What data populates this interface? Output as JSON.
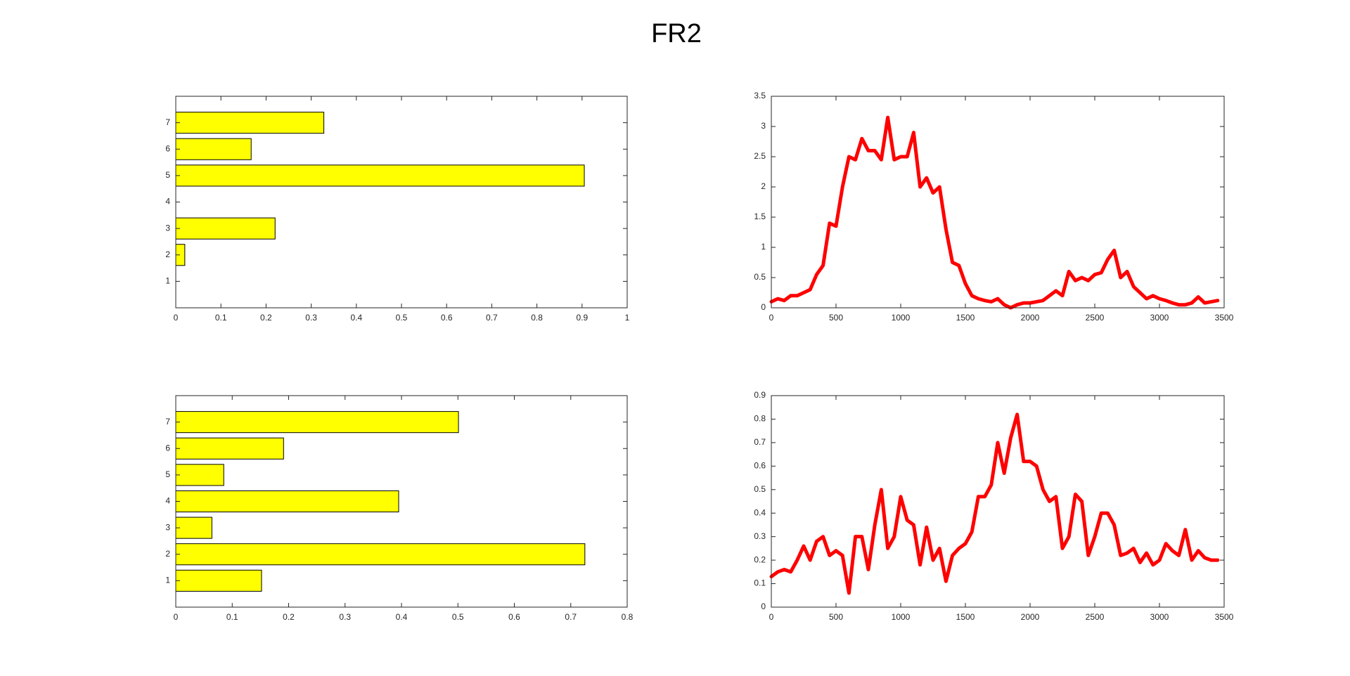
{
  "title": "FR2",
  "chart_data": [
    {
      "type": "barh",
      "y": [
        1,
        2,
        3,
        4,
        5,
        6,
        7
      ],
      "values": [
        0,
        0.02,
        0.22,
        0,
        0.905,
        0.167,
        0.328
      ],
      "color": "#ffff00",
      "edgecolor": "#000000",
      "xlim": [
        0,
        1
      ],
      "xticks": [
        0,
        0.1,
        0.2,
        0.3,
        0.4,
        0.5,
        0.6,
        0.7,
        0.8,
        0.9,
        1
      ],
      "ylim": [
        0,
        8
      ],
      "yticks": [
        1,
        2,
        3,
        4,
        5,
        6,
        7
      ]
    },
    {
      "type": "line",
      "color": "#ff0000",
      "x": [
        0,
        50,
        100,
        150,
        200,
        250,
        300,
        350,
        400,
        450,
        500,
        550,
        600,
        650,
        700,
        750,
        800,
        850,
        900,
        950,
        1000,
        1050,
        1100,
        1150,
        1200,
        1250,
        1300,
        1350,
        1400,
        1450,
        1500,
        1550,
        1600,
        1650,
        1700,
        1750,
        1800,
        1850,
        1900,
        1950,
        2000,
        2050,
        2100,
        2150,
        2200,
        2250,
        2300,
        2350,
        2400,
        2450,
        2500,
        2550,
        2600,
        2650,
        2700,
        2750,
        2800,
        2850,
        2900,
        2950,
        3000,
        3050,
        3100,
        3150,
        3200,
        3250,
        3300,
        3350,
        3400,
        3450
      ],
      "values": [
        0.1,
        0.15,
        0.12,
        0.2,
        0.2,
        0.25,
        0.3,
        0.55,
        0.7,
        1.4,
        1.35,
        2.0,
        2.5,
        2.45,
        2.8,
        2.6,
        2.6,
        2.45,
        3.15,
        2.45,
        2.5,
        2.5,
        2.9,
        2.0,
        2.15,
        1.9,
        2.0,
        1.3,
        0.75,
        0.7,
        0.4,
        0.2,
        0.15,
        0.12,
        0.1,
        0.15,
        0.05,
        0.0,
        0.05,
        0.08,
        0.08,
        0.1,
        0.12,
        0.2,
        0.28,
        0.2,
        0.6,
        0.45,
        0.5,
        0.45,
        0.55,
        0.58,
        0.8,
        0.95,
        0.5,
        0.6,
        0.35,
        0.25,
        0.15,
        0.2,
        0.15,
        0.12,
        0.08,
        0.05,
        0.05,
        0.08,
        0.18,
        0.08,
        0.1,
        0.12
      ],
      "xlim": [
        0,
        3500
      ],
      "xticks": [
        0,
        500,
        1000,
        1500,
        2000,
        2500,
        3000,
        3500
      ],
      "ylim": [
        0,
        3.5
      ],
      "yticks": [
        0,
        0.5,
        1,
        1.5,
        2,
        2.5,
        3,
        3.5
      ]
    },
    {
      "type": "barh",
      "y": [
        1,
        2,
        3,
        4,
        5,
        6,
        7
      ],
      "values": [
        0.152,
        0.725,
        0.064,
        0.395,
        0.085,
        0.191,
        0.501
      ],
      "color": "#ffff00",
      "edgecolor": "#000000",
      "xlim": [
        0,
        0.8
      ],
      "xticks": [
        0,
        0.1,
        0.2,
        0.3,
        0.4,
        0.5,
        0.6,
        0.7,
        0.8
      ],
      "ylim": [
        0,
        8
      ],
      "yticks": [
        1,
        2,
        3,
        4,
        5,
        6,
        7
      ]
    },
    {
      "type": "line",
      "color": "#ff0000",
      "x": [
        0,
        50,
        100,
        150,
        200,
        250,
        300,
        350,
        400,
        450,
        500,
        550,
        600,
        650,
        700,
        750,
        800,
        850,
        900,
        950,
        1000,
        1050,
        1100,
        1150,
        1200,
        1250,
        1300,
        1350,
        1400,
        1450,
        1500,
        1550,
        1600,
        1650,
        1700,
        1750,
        1800,
        1850,
        1900,
        1950,
        2000,
        2050,
        2100,
        2150,
        2200,
        2250,
        2300,
        2350,
        2400,
        2450,
        2500,
        2550,
        2600,
        2650,
        2700,
        2750,
        2800,
        2850,
        2900,
        2950,
        3000,
        3050,
        3100,
        3150,
        3200,
        3250,
        3300,
        3350,
        3400,
        3450
      ],
      "values": [
        0.13,
        0.15,
        0.16,
        0.15,
        0.2,
        0.26,
        0.2,
        0.28,
        0.3,
        0.22,
        0.24,
        0.22,
        0.06,
        0.3,
        0.3,
        0.16,
        0.35,
        0.5,
        0.25,
        0.3,
        0.47,
        0.37,
        0.35,
        0.18,
        0.34,
        0.2,
        0.25,
        0.11,
        0.22,
        0.25,
        0.27,
        0.32,
        0.47,
        0.47,
        0.52,
        0.7,
        0.57,
        0.72,
        0.82,
        0.62,
        0.62,
        0.6,
        0.5,
        0.45,
        0.47,
        0.25,
        0.3,
        0.48,
        0.45,
        0.22,
        0.3,
        0.4,
        0.4,
        0.35,
        0.22,
        0.23,
        0.25,
        0.19,
        0.23,
        0.18,
        0.2,
        0.27,
        0.24,
        0.22,
        0.33,
        0.2,
        0.24,
        0.21,
        0.2,
        0.2
      ],
      "xlim": [
        0,
        3500
      ],
      "xticks": [
        0,
        500,
        1000,
        1500,
        2000,
        2500,
        3000,
        3500
      ],
      "ylim": [
        0,
        0.9
      ],
      "yticks": [
        0,
        0.1,
        0.2,
        0.3,
        0.4,
        0.5,
        0.6,
        0.7,
        0.8,
        0.9
      ]
    }
  ]
}
